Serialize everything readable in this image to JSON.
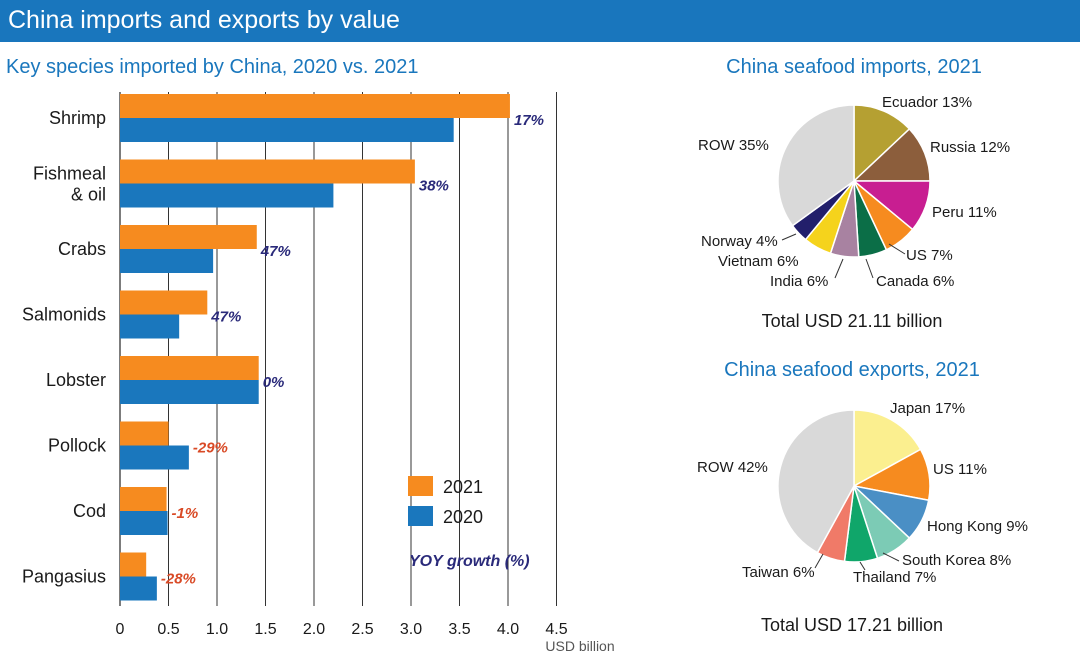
{
  "header": {
    "title": "China imports and exports by value"
  },
  "chart_data": [
    {
      "type": "bar",
      "orientation": "horizontal",
      "title": "Key species imported by China, 2020 vs. 2021",
      "xlabel": "USD billion",
      "xlim": [
        0,
        4.5
      ],
      "xticks": [
        "0",
        "0.5",
        "1.0",
        "1.5",
        "2.0",
        "2.5",
        "3.0",
        "3.5",
        "4.0",
        "4.5"
      ],
      "grid": "vertical",
      "categories": [
        "Shrimp",
        "Fishmeal\n& oil",
        "Crabs",
        "Salmonids",
        "Lobster",
        "Pollock",
        "Cod",
        "Pangasius"
      ],
      "series": [
        {
          "name": "2021",
          "color": "#f68b1f",
          "values": [
            4.02,
            3.04,
            1.41,
            0.9,
            1.43,
            0.5,
            0.48,
            0.27
          ]
        },
        {
          "name": "2020",
          "color": "#1a77bd",
          "values": [
            3.44,
            2.2,
            0.96,
            0.61,
            1.43,
            0.71,
            0.49,
            0.38
          ]
        }
      ],
      "growth_labels": [
        "17%",
        "38%",
        "47%",
        "47%",
        "0%",
        "-29%",
        "-1%",
        "-28%"
      ],
      "growth_note": "YOY growth (%)",
      "legend_position": "bottom-right"
    },
    {
      "type": "pie",
      "title": "China seafood imports, 2021",
      "total_label": "Total USD 21.11 billion",
      "slices": [
        {
          "label": "Ecuador 13%",
          "value": 13,
          "color": "#b5a032"
        },
        {
          "label": "Russia 12%",
          "value": 12,
          "color": "#8c5e3c"
        },
        {
          "label": "Peru 11%",
          "value": 11,
          "color": "#c81e91"
        },
        {
          "label": "US 7%",
          "value": 7,
          "color": "#f68b1f"
        },
        {
          "label": "Canada 6%",
          "value": 6,
          "color": "#0b6e47"
        },
        {
          "label": "India 6%",
          "value": 6,
          "color": "#a882a1"
        },
        {
          "label": "Vietnam 6%",
          "value": 6,
          "color": "#f5d31c"
        },
        {
          "label": "Norway 4%",
          "value": 4,
          "color": "#221f6b"
        },
        {
          "label": "ROW 35%",
          "value": 35,
          "color": "#d9d9d9"
        }
      ]
    },
    {
      "type": "pie",
      "title": "China seafood exports, 2021",
      "total_label": "Total USD 17.21 billion",
      "slices": [
        {
          "label": "Japan 17%",
          "value": 17,
          "color": "#fbef8f"
        },
        {
          "label": "US 11%",
          "value": 11,
          "color": "#f68b1f"
        },
        {
          "label": "Hong Kong 9%",
          "value": 9,
          "color": "#4a8fc5"
        },
        {
          "label": "South Korea 8%",
          "value": 8,
          "color": "#7ccbb5"
        },
        {
          "label": "Thailand 7%",
          "value": 7,
          "color": "#10a66a"
        },
        {
          "label": "Taiwan 6%",
          "value": 6,
          "color": "#f07a68"
        },
        {
          "label": "ROW 42%",
          "value": 42,
          "color": "#d9d9d9"
        }
      ]
    }
  ]
}
